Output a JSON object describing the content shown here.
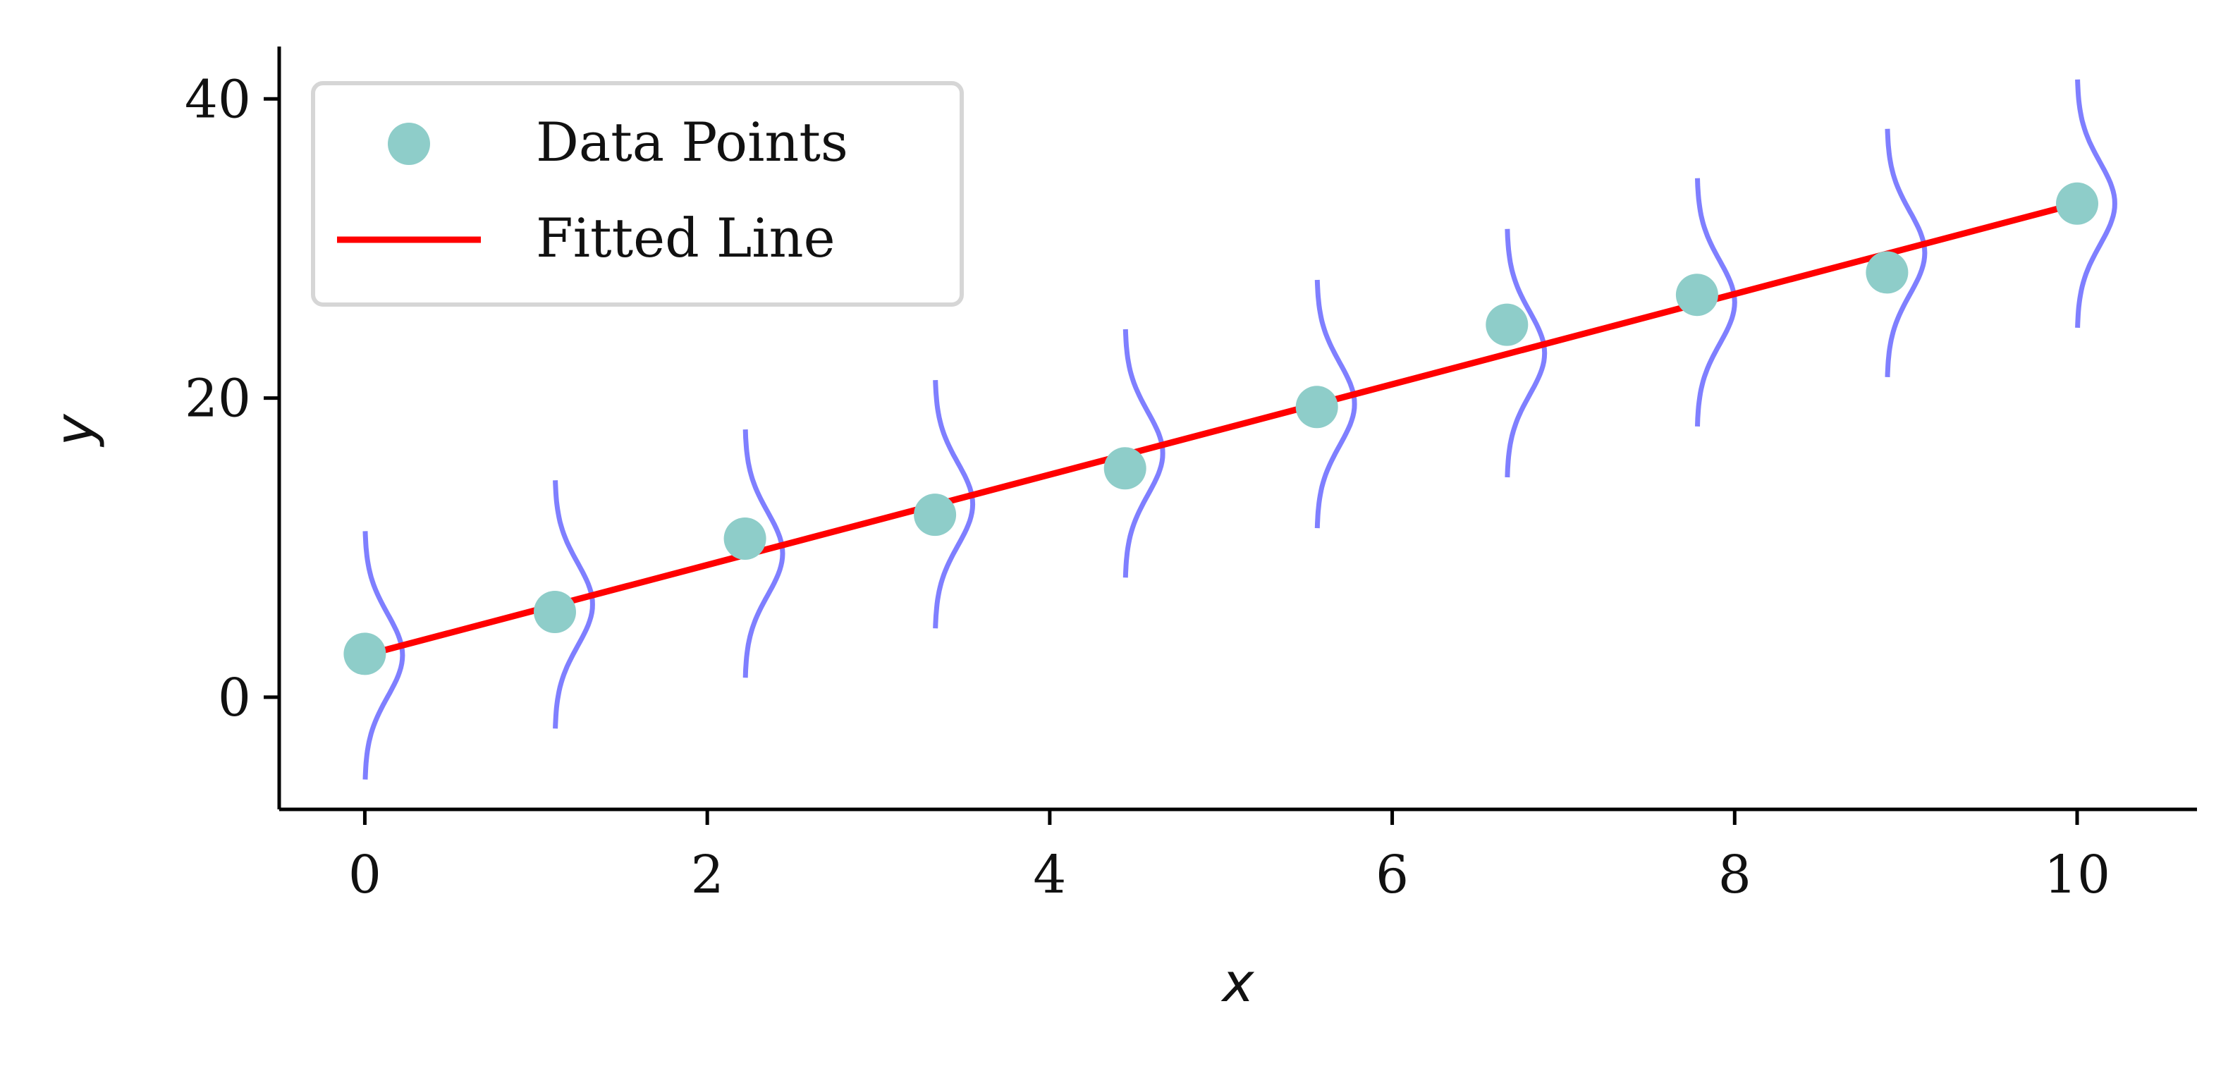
{
  "chart_data": {
    "type": "scatter",
    "title": "",
    "xlabel": "x",
    "ylabel": "y",
    "xlim": [
      -0.5,
      10.7
    ],
    "ylim": [
      -7.5,
      43.5
    ],
    "x_ticks": [
      0,
      2,
      4,
      6,
      8,
      10
    ],
    "x_tick_labels": [
      "0",
      "2",
      "4",
      "6",
      "8",
      "10"
    ],
    "y_ticks": [
      0,
      20,
      40
    ],
    "y_tick_labels": [
      "0",
      "20",
      "40"
    ],
    "grid": false,
    "legend_position": "upper-left",
    "series": [
      {
        "name": "Data Points",
        "type": "scatter",
        "color": "#8ecdc9",
        "x": [
          0.0,
          1.11,
          2.22,
          3.33,
          4.44,
          5.56,
          6.67,
          7.78,
          8.89,
          10.0
        ],
        "y": [
          2.9,
          5.7,
          10.6,
          12.2,
          15.3,
          19.4,
          24.9,
          26.9,
          28.4,
          33.0
        ]
      },
      {
        "name": "Fitted Line",
        "type": "line",
        "color": "#ff0000",
        "x": [
          0.0,
          10.0
        ],
        "y": [
          2.8,
          33.0
        ]
      }
    ],
    "distribution_curves": {
      "color": "#7f7fff",
      "x_centers": [
        0.0,
        1.11,
        2.22,
        3.33,
        4.44,
        5.56,
        6.67,
        7.78,
        8.89,
        10.0
      ],
      "y_centers": [
        2.8,
        6.2,
        9.6,
        12.9,
        16.3,
        19.6,
        23.0,
        26.4,
        29.7,
        33.0
      ],
      "half_height": 8.3,
      "peak_width": 0.22
    }
  }
}
